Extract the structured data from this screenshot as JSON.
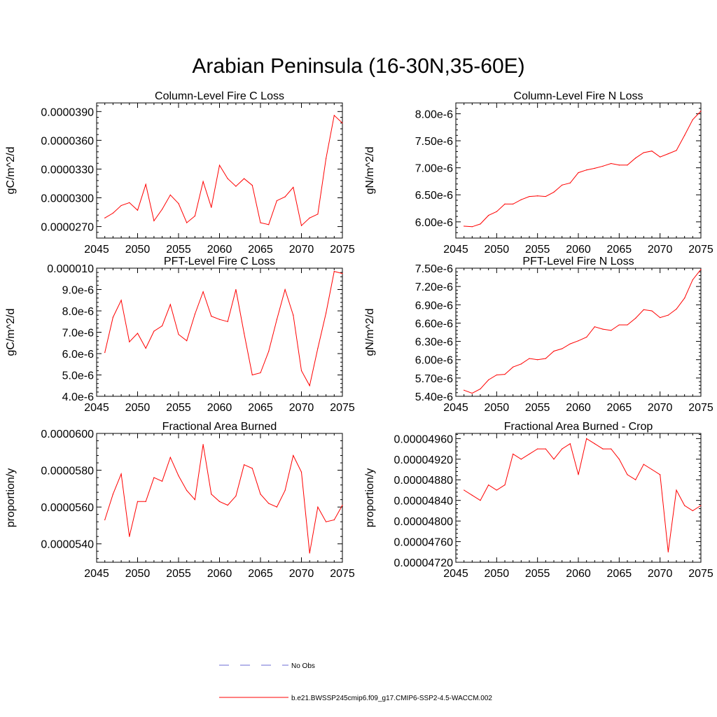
{
  "figure": {
    "title": "Arabian Peninsula (16-30N,35-60E)"
  },
  "legend": [
    {
      "label": "No Obs",
      "color": "#6b6bd6",
      "dash": true
    },
    {
      "label": "b.e21.BWSSP245cmip6.f09_g17.CMIP6-SSP2-4.5-WACCM.002",
      "color": "#ff0000",
      "dash": false
    }
  ],
  "chart_data": [
    {
      "type": "line",
      "title": "Column-Level Fire C Loss",
      "ylabel": "gC/m^2/d",
      "xlim": [
        2045,
        2075
      ],
      "ylim": [
        2.58e-05,
        3.99e-05
      ],
      "xticks": [
        2045,
        2050,
        2055,
        2060,
        2065,
        2070,
        2075
      ],
      "xtick_labels": [
        "2045",
        "2050",
        "2055",
        "2060",
        "2065",
        "2070",
        "2075"
      ],
      "yticks": [
        2.7e-05,
        3e-05,
        3.3e-05,
        3.6e-05,
        3.9e-05
      ],
      "ytick_labels": [
        "0.0000270",
        "0.0000300",
        "0.0000330",
        "0.0000360",
        "0.0000390"
      ],
      "x": [
        2046,
        2047,
        2048,
        2049,
        2050,
        2051,
        2052,
        2053,
        2054,
        2055,
        2056,
        2057,
        2058,
        2059,
        2060,
        2061,
        2062,
        2063,
        2064,
        2065,
        2066,
        2067,
        2068,
        2069,
        2070,
        2071,
        2072,
        2073,
        2074,
        2075
      ],
      "series": [
        {
          "color": "#ff0000",
          "values": [
            2.79e-05,
            2.84e-05,
            2.92e-05,
            2.95e-05,
            2.87e-05,
            3.14e-05,
            2.76e-05,
            2.88e-05,
            3.03e-05,
            2.94e-05,
            2.74e-05,
            2.81e-05,
            3.17e-05,
            2.9e-05,
            3.34e-05,
            3.2e-05,
            3.12e-05,
            3.2e-05,
            3.13e-05,
            2.74e-05,
            2.72e-05,
            2.97e-05,
            3.01e-05,
            3.11e-05,
            2.71e-05,
            2.79e-05,
            2.83e-05,
            3.41e-05,
            3.86e-05,
            3.78e-05
          ]
        }
      ]
    },
    {
      "type": "line",
      "title": "Column-Level Fire N Loss",
      "ylabel": "gN/m^2/d",
      "xlim": [
        2045,
        2075
      ],
      "ylim": [
        5.7e-06,
        8.2e-06
      ],
      "xticks": [
        2045,
        2050,
        2055,
        2060,
        2065,
        2070,
        2075
      ],
      "xtick_labels": [
        "2045",
        "2050",
        "2055",
        "2060",
        "2065",
        "2070",
        "2075"
      ],
      "yticks": [
        6e-06,
        6.5e-06,
        7e-06,
        7.5e-06,
        8e-06
      ],
      "ytick_labels": [
        "6.00e-6",
        "6.50e-6",
        "7.00e-6",
        "7.50e-6",
        "8.00e-6"
      ],
      "x": [
        2046,
        2047,
        2048,
        2049,
        2050,
        2051,
        2052,
        2053,
        2054,
        2055,
        2056,
        2057,
        2058,
        2059,
        2060,
        2061,
        2062,
        2063,
        2064,
        2065,
        2066,
        2067,
        2068,
        2069,
        2070,
        2071,
        2072,
        2073,
        2074,
        2075
      ],
      "series": [
        {
          "color": "#ff0000",
          "values": [
            5.92e-06,
            5.91e-06,
            5.96e-06,
            6.12e-06,
            6.19e-06,
            6.33e-06,
            6.33e-06,
            6.41e-06,
            6.47e-06,
            6.48e-06,
            6.47e-06,
            6.55e-06,
            6.68e-06,
            6.72e-06,
            6.91e-06,
            6.96e-06,
            6.99e-06,
            7.03e-06,
            7.08e-06,
            7.05e-06,
            7.05e-06,
            7.18e-06,
            7.28e-06,
            7.31e-06,
            7.2e-06,
            7.26e-06,
            7.32e-06,
            7.6e-06,
            7.89e-06,
            8.05e-06
          ]
        }
      ]
    },
    {
      "type": "line",
      "title": "PFT-Level Fire C Loss",
      "ylabel": "gC/m^2/d",
      "xlim": [
        2045,
        2075
      ],
      "ylim": [
        4e-06,
        1e-05
      ],
      "xticks": [
        2045,
        2050,
        2055,
        2060,
        2065,
        2070,
        2075
      ],
      "xtick_labels": [
        "2045",
        "2050",
        "2055",
        "2060",
        "2065",
        "2070",
        "2075"
      ],
      "yticks": [
        4e-06,
        5e-06,
        6e-06,
        7e-06,
        8e-06,
        9e-06,
        1e-05
      ],
      "ytick_labels": [
        "4.0e-6",
        "5.0e-6",
        "6.0e-6",
        "7.0e-6",
        "8.0e-6",
        "9.0e-6",
        "0.000010"
      ],
      "x": [
        2046,
        2047,
        2048,
        2049,
        2050,
        2051,
        2052,
        2053,
        2054,
        2055,
        2056,
        2057,
        2058,
        2059,
        2060,
        2061,
        2062,
        2063,
        2064,
        2065,
        2066,
        2067,
        2068,
        2069,
        2070,
        2071,
        2072,
        2073,
        2074,
        2075
      ],
      "series": [
        {
          "color": "#ff0000",
          "values": [
            6.05e-06,
            7.7e-06,
            8.5e-06,
            6.55e-06,
            6.95e-06,
            6.25e-06,
            7.05e-06,
            7.3e-06,
            8.3e-06,
            6.9e-06,
            6.6e-06,
            7.85e-06,
            8.9e-06,
            7.75e-06,
            7.6e-06,
            7.5e-06,
            9e-06,
            6.95e-06,
            5e-06,
            5.1e-06,
            6.1e-06,
            7.6e-06,
            9e-06,
            7.8e-06,
            5.2e-06,
            4.5e-06,
            6.25e-06,
            7.9e-06,
            9.85e-06,
            9.75e-06
          ]
        }
      ]
    },
    {
      "type": "line",
      "title": "PFT-Level Fire N Loss",
      "ylabel": "gN/m^2/d",
      "xlim": [
        2045,
        2075
      ],
      "ylim": [
        5.4e-06,
        7.5e-06
      ],
      "xticks": [
        2045,
        2050,
        2055,
        2060,
        2065,
        2070,
        2075
      ],
      "xtick_labels": [
        "2045",
        "2050",
        "2055",
        "2060",
        "2065",
        "2070",
        "2075"
      ],
      "yticks": [
        5.4e-06,
        5.7e-06,
        6e-06,
        6.3e-06,
        6.6e-06,
        6.9e-06,
        7.2e-06,
        7.5e-06
      ],
      "ytick_labels": [
        "5.40e-6",
        "5.70e-6",
        "6.00e-6",
        "6.30e-6",
        "6.60e-6",
        "6.90e-6",
        "7.20e-6",
        "7.50e-6"
      ],
      "x": [
        2046,
        2047,
        2048,
        2049,
        2050,
        2051,
        2052,
        2053,
        2054,
        2055,
        2056,
        2057,
        2058,
        2059,
        2060,
        2061,
        2062,
        2063,
        2064,
        2065,
        2066,
        2067,
        2068,
        2069,
        2070,
        2071,
        2072,
        2073,
        2074,
        2075
      ],
      "series": [
        {
          "color": "#ff0000",
          "values": [
            5.5e-06,
            5.45e-06,
            5.52e-06,
            5.67e-06,
            5.75e-06,
            5.76e-06,
            5.88e-06,
            5.93e-06,
            6.02e-06,
            6e-06,
            6.02e-06,
            6.14e-06,
            6.18e-06,
            6.26e-06,
            6.31e-06,
            6.37e-06,
            6.54e-06,
            6.5e-06,
            6.48e-06,
            6.57e-06,
            6.57e-06,
            6.68e-06,
            6.82e-06,
            6.8e-06,
            6.69e-06,
            6.73e-06,
            6.83e-06,
            7.01e-06,
            7.31e-06,
            7.48e-06
          ]
        }
      ]
    },
    {
      "type": "line",
      "title": "Fractional Area Burned",
      "ylabel": "proportion/y",
      "xlim": [
        2045,
        2075
      ],
      "ylim": [
        5.3e-05,
        6e-05
      ],
      "xticks": [
        2045,
        2050,
        2055,
        2060,
        2065,
        2070,
        2075
      ],
      "xtick_labels": [
        "2045",
        "2050",
        "2055",
        "2060",
        "2065",
        "2070",
        "2075"
      ],
      "yticks": [
        5.4e-05,
        5.6e-05,
        5.8e-05,
        6e-05
      ],
      "ytick_labels": [
        "0.0000540",
        "0.0000560",
        "0.0000580",
        "0.0000600"
      ],
      "x": [
        2046,
        2047,
        2048,
        2049,
        2050,
        2051,
        2052,
        2053,
        2054,
        2055,
        2056,
        2057,
        2058,
        2059,
        2060,
        2061,
        2062,
        2063,
        2064,
        2065,
        2066,
        2067,
        2068,
        2069,
        2070,
        2071,
        2072,
        2073,
        2074,
        2075
      ],
      "series": [
        {
          "color": "#ff0000",
          "values": [
            5.53e-05,
            5.67e-05,
            5.78e-05,
            5.44e-05,
            5.63e-05,
            5.63e-05,
            5.76e-05,
            5.74e-05,
            5.87e-05,
            5.77e-05,
            5.69e-05,
            5.64e-05,
            5.94e-05,
            5.67e-05,
            5.63e-05,
            5.61e-05,
            5.66e-05,
            5.83e-05,
            5.81e-05,
            5.67e-05,
            5.62e-05,
            5.6e-05,
            5.69e-05,
            5.88e-05,
            5.79e-05,
            5.35e-05,
            5.6e-05,
            5.52e-05,
            5.53e-05,
            5.61e-05
          ]
        }
      ]
    },
    {
      "type": "line",
      "title": "Fractional Area Burned - Crop",
      "ylabel": "proportion/y",
      "xlim": [
        2045,
        2075
      ],
      "ylim": [
        4.72e-05,
        4.97e-05
      ],
      "xticks": [
        2045,
        2050,
        2055,
        2060,
        2065,
        2070,
        2075
      ],
      "xtick_labels": [
        "2045",
        "2050",
        "2055",
        "2060",
        "2065",
        "2070",
        "2075"
      ],
      "yticks": [
        4.72e-05,
        4.76e-05,
        4.8e-05,
        4.84e-05,
        4.88e-05,
        4.92e-05,
        4.96e-05
      ],
      "ytick_labels": [
        "0.00004720",
        "0.00004760",
        "0.00004800",
        "0.00004840",
        "0.00004880",
        "0.00004920",
        "0.00004960"
      ],
      "x": [
        2046,
        2047,
        2048,
        2049,
        2050,
        2051,
        2052,
        2053,
        2054,
        2055,
        2056,
        2057,
        2058,
        2059,
        2060,
        2061,
        2062,
        2063,
        2064,
        2065,
        2066,
        2067,
        2068,
        2069,
        2070,
        2071,
        2072,
        2073,
        2074,
        2075
      ],
      "series": [
        {
          "color": "#ff0000",
          "values": [
            4.86e-05,
            4.85e-05,
            4.84e-05,
            4.87e-05,
            4.86e-05,
            4.87e-05,
            4.93e-05,
            4.92e-05,
            4.93e-05,
            4.94e-05,
            4.94e-05,
            4.92e-05,
            4.94e-05,
            4.95e-05,
            4.89e-05,
            4.96e-05,
            4.95e-05,
            4.94e-05,
            4.94e-05,
            4.92e-05,
            4.89e-05,
            4.88e-05,
            4.91e-05,
            4.9e-05,
            4.89e-05,
            4.74e-05,
            4.86e-05,
            4.83e-05,
            4.82e-05,
            4.83e-05
          ]
        }
      ]
    }
  ]
}
